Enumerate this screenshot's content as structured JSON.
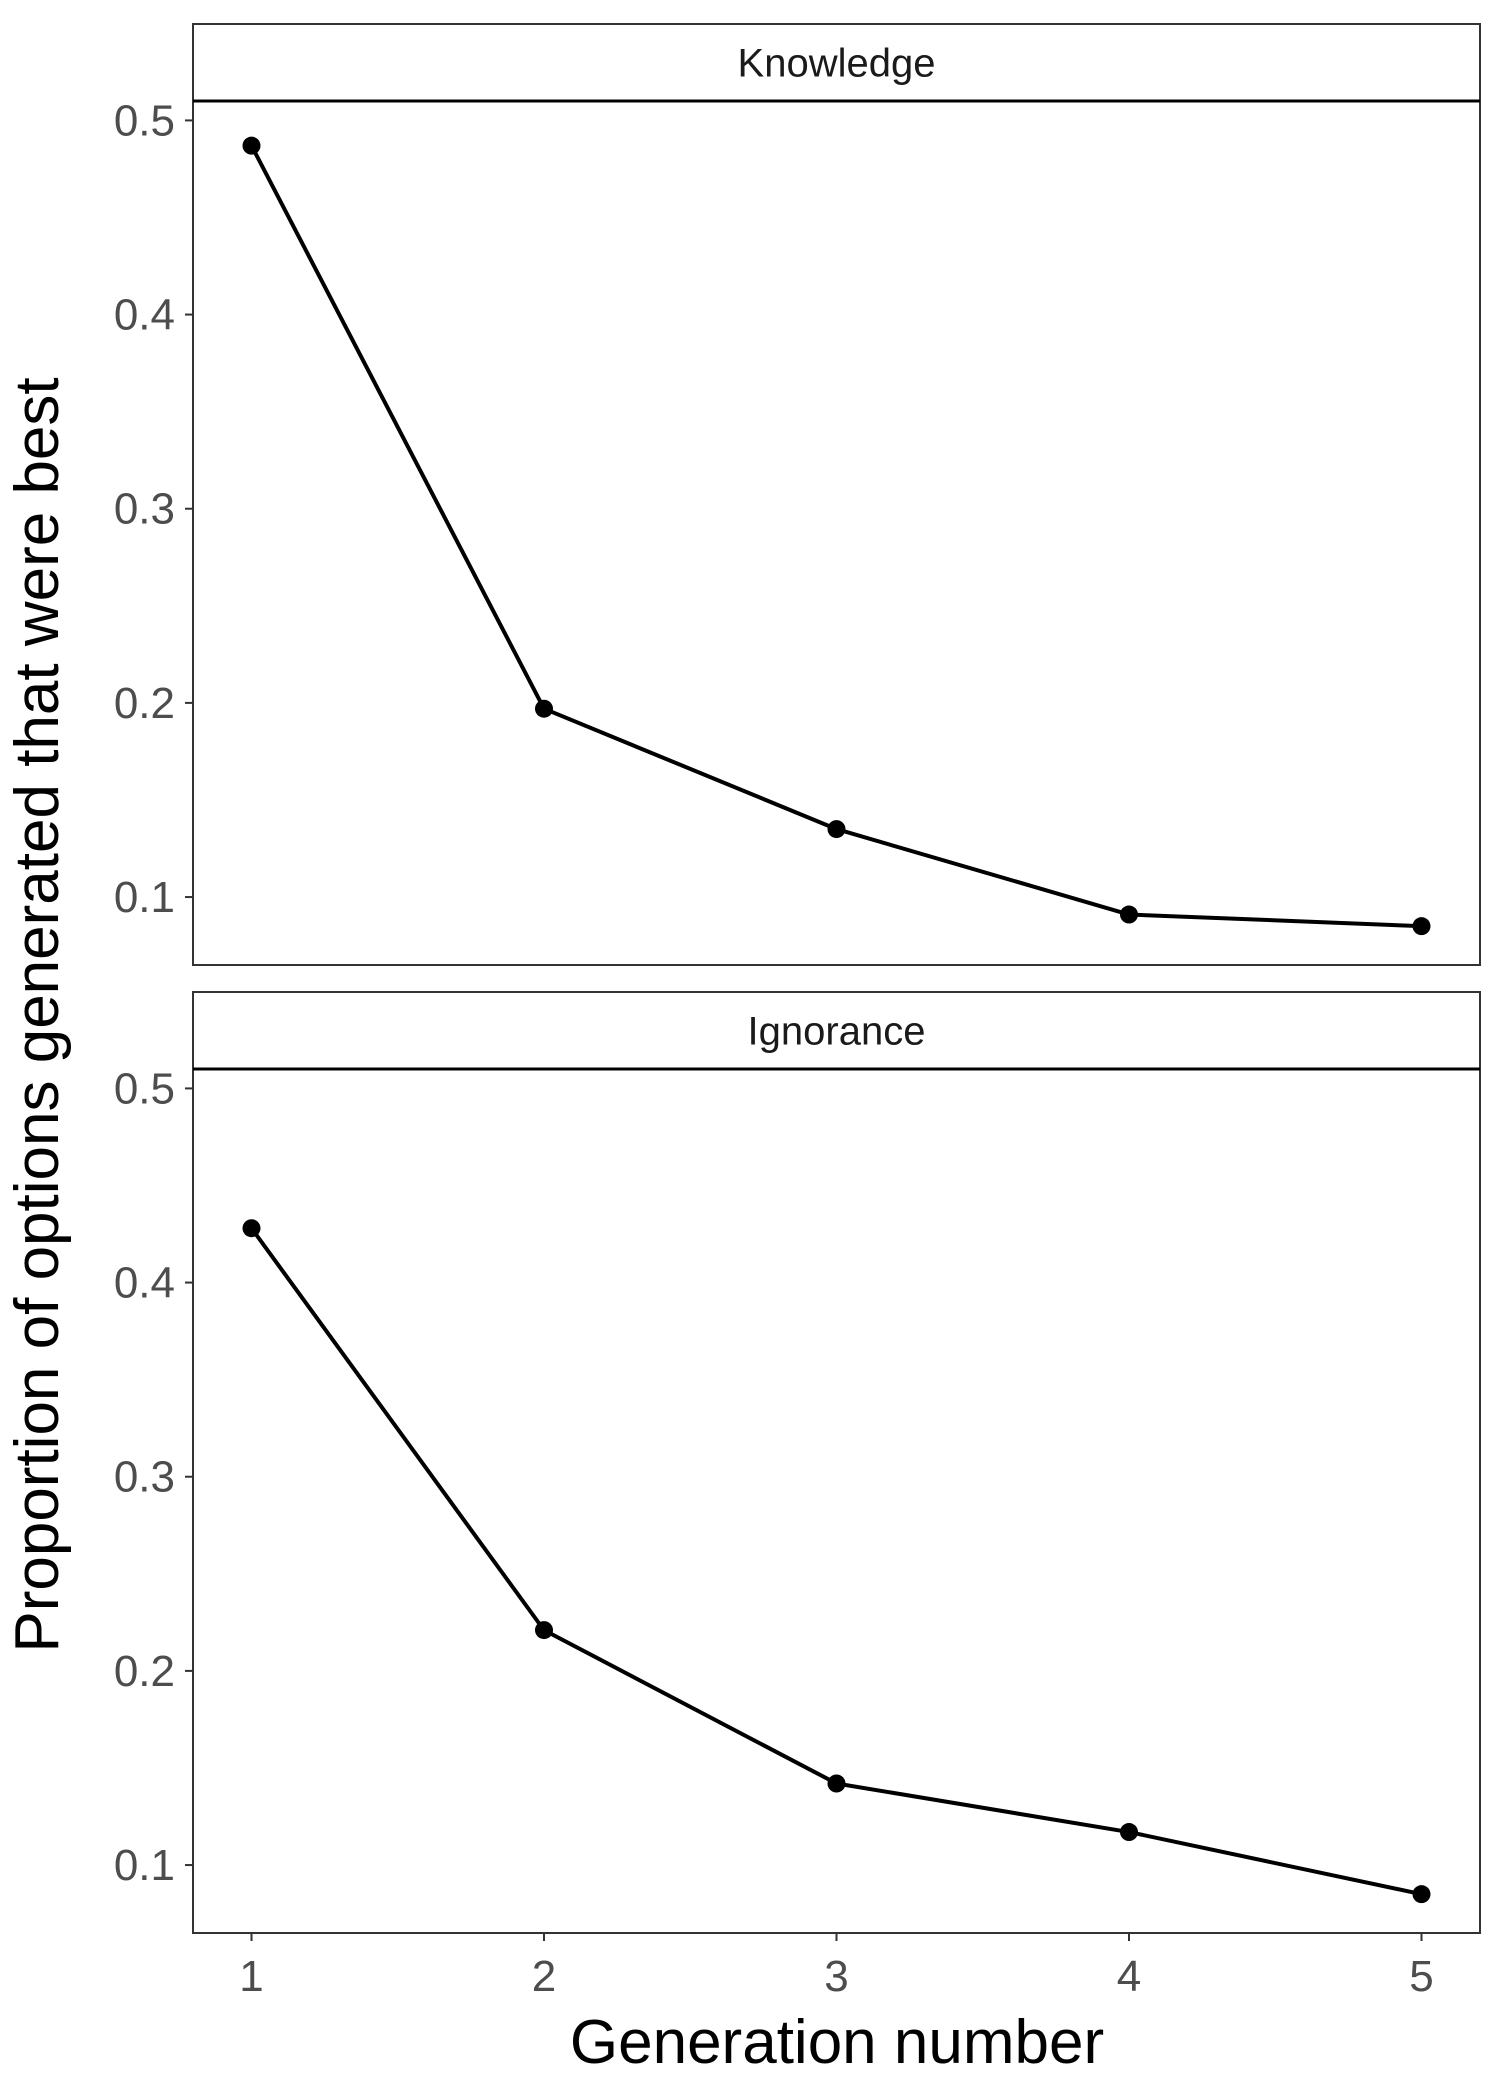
{
  "chart_data": {
    "type": "line",
    "xlabel": "Generation number",
    "ylabel": "Proportion of options generated that were best",
    "x": [
      1,
      2,
      3,
      4,
      5
    ],
    "xlim": [
      0.8,
      5.2
    ],
    "ylim": [
      0.065,
      0.51
    ],
    "yticks": [
      0.1,
      0.2,
      0.3,
      0.4,
      0.5
    ],
    "grid": false,
    "line_color": "#000000",
    "panels": [
      {
        "strip": "Knowledge",
        "values": [
          0.487,
          0.197,
          0.135,
          0.091,
          0.085
        ]
      },
      {
        "strip": "Ignorance",
        "values": [
          0.428,
          0.221,
          0.142,
          0.117,
          0.085
        ]
      }
    ]
  }
}
